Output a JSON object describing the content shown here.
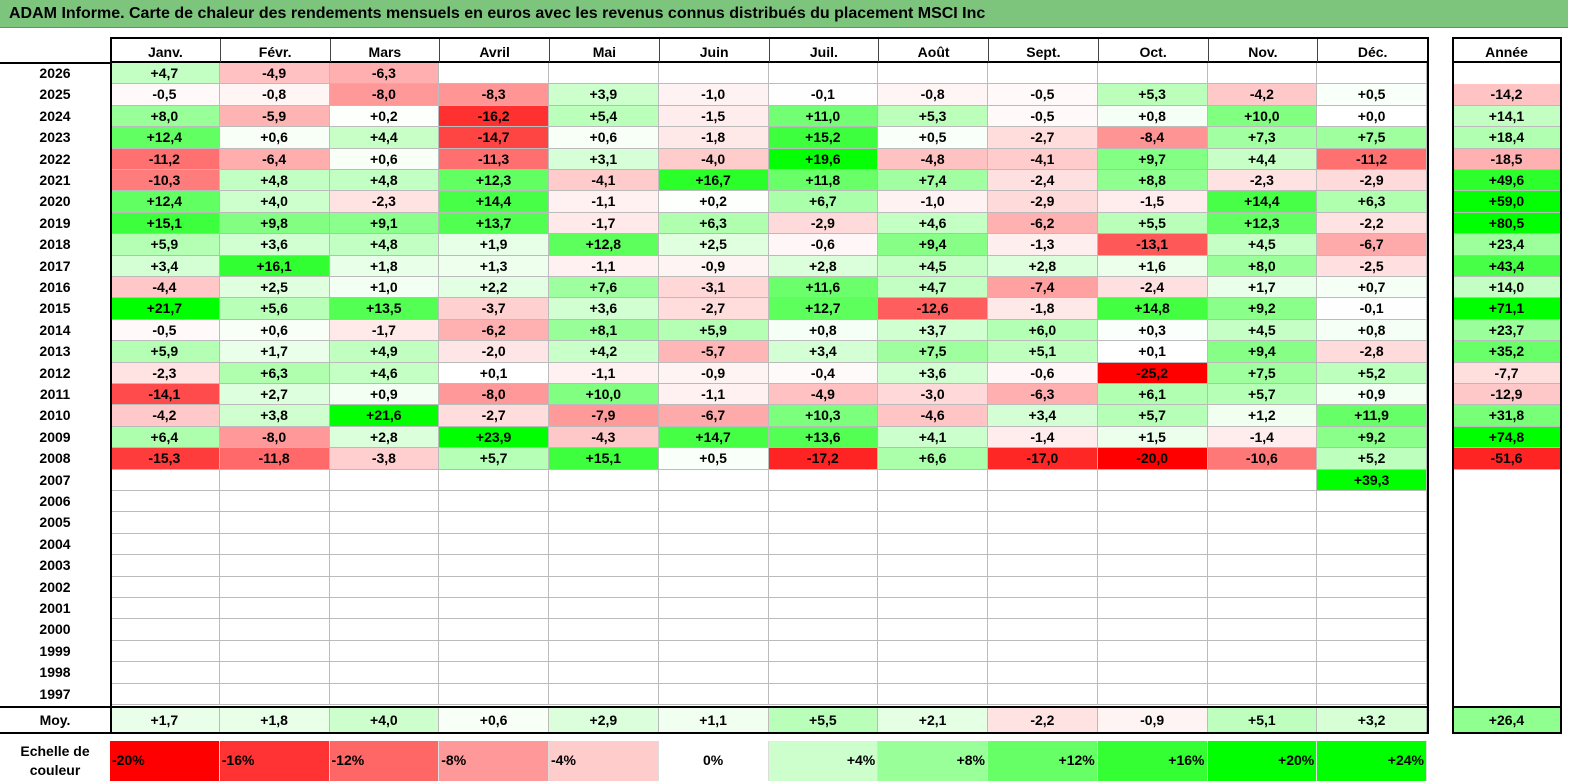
{
  "title": "ADAM Informe. Carte de chaleur des rendements mensuels en euros avec les revenus connus distribués du placement MSCI Inc",
  "chart_data": {
    "type": "heatmap",
    "title": "ADAM Informe. Carte de chaleur des rendements mensuels en euros avec les revenus connus distribués du placement MSCI Inc",
    "columns": [
      "Janv.",
      "Févr.",
      "Mars",
      "Avril",
      "Mai",
      "Juin",
      "Juil.",
      "Août",
      "Sept.",
      "Oct.",
      "Nov.",
      "Déc."
    ],
    "year_header": "Année",
    "rows": [
      {
        "label": "2026",
        "values": [
          "+4,7",
          "-4,9",
          "-6,3",
          null,
          null,
          null,
          null,
          null,
          null,
          null,
          null,
          null
        ],
        "year": null
      },
      {
        "label": "2025",
        "values": [
          "-0,5",
          "-0,8",
          "-8,0",
          "-8,3",
          "+3,9",
          "-1,0",
          "-0,1",
          "-0,8",
          "-0,5",
          "+5,3",
          "-4,2",
          "+0,5"
        ],
        "year": "-14,2"
      },
      {
        "label": "2024",
        "values": [
          "+8,0",
          "-5,9",
          "+0,2",
          "-16,2",
          "+5,4",
          "-1,5",
          "+11,0",
          "+5,3",
          "-0,5",
          "+0,8",
          "+10,0",
          "+0,0"
        ],
        "year": "+14,1"
      },
      {
        "label": "2023",
        "values": [
          "+12,4",
          "+0,6",
          "+4,4",
          "-14,7",
          "+0,6",
          "-1,8",
          "+15,2",
          "+0,5",
          "-2,7",
          "-8,4",
          "+7,3",
          "+7,5"
        ],
        "year": "+18,4"
      },
      {
        "label": "2022",
        "values": [
          "-11,2",
          "-6,4",
          "+0,6",
          "-11,3",
          "+3,1",
          "-4,0",
          "+19,6",
          "-4,8",
          "-4,1",
          "+9,7",
          "+4,4",
          "-11,2"
        ],
        "year": "-18,5"
      },
      {
        "label": "2021",
        "values": [
          "-10,3",
          "+4,8",
          "+4,8",
          "+12,3",
          "-4,1",
          "+16,7",
          "+11,8",
          "+7,4",
          "-2,4",
          "+8,8",
          "-2,3",
          "-2,9"
        ],
        "year": "+49,6"
      },
      {
        "label": "2020",
        "values": [
          "+12,4",
          "+4,0",
          "-2,3",
          "+14,4",
          "-1,1",
          "+0,2",
          "+6,7",
          "-1,0",
          "-2,9",
          "-1,5",
          "+14,4",
          "+6,3"
        ],
        "year": "+59,0"
      },
      {
        "label": "2019",
        "values": [
          "+15,1",
          "+9,8",
          "+9,1",
          "+13,7",
          "-1,7",
          "+6,3",
          "-2,9",
          "+4,6",
          "-6,2",
          "+5,5",
          "+12,3",
          "-2,2"
        ],
        "year": "+80,5"
      },
      {
        "label": "2018",
        "values": [
          "+5,9",
          "+3,6",
          "+4,8",
          "+1,9",
          "+12,8",
          "+2,5",
          "-0,6",
          "+9,4",
          "-1,3",
          "-13,1",
          "+4,5",
          "-6,7"
        ],
        "year": "+23,4"
      },
      {
        "label": "2017",
        "values": [
          "+3,4",
          "+16,1",
          "+1,8",
          "+1,3",
          "-1,1",
          "-0,9",
          "+2,8",
          "+4,5",
          "+2,8",
          "+1,6",
          "+8,0",
          "-2,5"
        ],
        "year": "+43,4"
      },
      {
        "label": "2016",
        "values": [
          "-4,4",
          "+2,5",
          "+1,0",
          "+2,2",
          "+7,6",
          "-3,1",
          "+11,6",
          "+4,7",
          "-7,4",
          "-2,4",
          "+1,7",
          "+0,7"
        ],
        "year": "+14,0"
      },
      {
        "label": "2015",
        "values": [
          "+21,7",
          "+5,6",
          "+13,5",
          "-3,7",
          "+3,6",
          "-2,7",
          "+12,7",
          "-12,6",
          "-1,8",
          "+14,8",
          "+9,2",
          "-0,1"
        ],
        "year": "+71,1"
      },
      {
        "label": "2014",
        "values": [
          "-0,5",
          "+0,6",
          "-1,7",
          "-6,2",
          "+8,1",
          "+5,9",
          "+0,8",
          "+3,7",
          "+6,0",
          "+0,3",
          "+4,5",
          "+0,8"
        ],
        "year": "+23,7"
      },
      {
        "label": "2013",
        "values": [
          "+5,9",
          "+1,7",
          "+4,9",
          "-2,0",
          "+4,2",
          "-5,7",
          "+3,4",
          "+7,5",
          "+5,1",
          "+0,1",
          "+9,4",
          "-2,8"
        ],
        "year": "+35,2"
      },
      {
        "label": "2012",
        "values": [
          "-2,3",
          "+6,3",
          "+4,6",
          "+0,1",
          "-1,1",
          "-0,9",
          "-0,4",
          "+3,6",
          "-0,6",
          "-25,2",
          "+7,5",
          "+5,2"
        ],
        "year": "-7,7"
      },
      {
        "label": "2011",
        "values": [
          "-14,1",
          "+2,7",
          "+0,9",
          "-8,0",
          "+10,0",
          "-1,1",
          "-4,9",
          "-3,0",
          "-6,3",
          "+6,1",
          "+5,7",
          "+0,9"
        ],
        "year": "-12,9"
      },
      {
        "label": "2010",
        "values": [
          "-4,2",
          "+3,8",
          "+21,6",
          "-2,7",
          "-7,9",
          "-6,7",
          "+10,3",
          "-4,6",
          "+3,4",
          "+5,7",
          "+1,2",
          "+11,9"
        ],
        "year": "+31,8"
      },
      {
        "label": "2009",
        "values": [
          "+6,4",
          "-8,0",
          "+2,8",
          "+23,9",
          "-4,3",
          "+14,7",
          "+13,6",
          "+4,1",
          "-1,4",
          "+1,5",
          "-1,4",
          "+9,2"
        ],
        "year": "+74,8"
      },
      {
        "label": "2008",
        "values": [
          "-15,3",
          "-11,8",
          "-3,8",
          "+5,7",
          "+15,1",
          "+0,5",
          "-17,2",
          "+6,6",
          "-17,0",
          "-20,0",
          "-10,6",
          "+5,2"
        ],
        "year": "-51,6"
      },
      {
        "label": "2007",
        "values": [
          null,
          null,
          null,
          null,
          null,
          null,
          null,
          null,
          null,
          null,
          null,
          "+39,3"
        ],
        "year": null
      },
      {
        "label": "2006",
        "values": [
          null,
          null,
          null,
          null,
          null,
          null,
          null,
          null,
          null,
          null,
          null,
          null
        ],
        "year": null
      },
      {
        "label": "2005",
        "values": [
          null,
          null,
          null,
          null,
          null,
          null,
          null,
          null,
          null,
          null,
          null,
          null
        ],
        "year": null
      },
      {
        "label": "2004",
        "values": [
          null,
          null,
          null,
          null,
          null,
          null,
          null,
          null,
          null,
          null,
          null,
          null
        ],
        "year": null
      },
      {
        "label": "2003",
        "values": [
          null,
          null,
          null,
          null,
          null,
          null,
          null,
          null,
          null,
          null,
          null,
          null
        ],
        "year": null
      },
      {
        "label": "2002",
        "values": [
          null,
          null,
          null,
          null,
          null,
          null,
          null,
          null,
          null,
          null,
          null,
          null
        ],
        "year": null
      },
      {
        "label": "2001",
        "values": [
          null,
          null,
          null,
          null,
          null,
          null,
          null,
          null,
          null,
          null,
          null,
          null
        ],
        "year": null
      },
      {
        "label": "2000",
        "values": [
          null,
          null,
          null,
          null,
          null,
          null,
          null,
          null,
          null,
          null,
          null,
          null
        ],
        "year": null
      },
      {
        "label": "1999",
        "values": [
          null,
          null,
          null,
          null,
          null,
          null,
          null,
          null,
          null,
          null,
          null,
          null
        ],
        "year": null
      },
      {
        "label": "1998",
        "values": [
          null,
          null,
          null,
          null,
          null,
          null,
          null,
          null,
          null,
          null,
          null,
          null
        ],
        "year": null
      },
      {
        "label": "1997",
        "values": [
          null,
          null,
          null,
          null,
          null,
          null,
          null,
          null,
          null,
          null,
          null,
          null
        ],
        "year": null
      }
    ],
    "average": {
      "label": "Moy.",
      "values": [
        "+1,7",
        "+1,8",
        "+4,0",
        "+0,6",
        "+2,9",
        "+1,1",
        "+5,5",
        "+2,1",
        "-2,2",
        "-0,9",
        "+5,1",
        "+3,2"
      ],
      "year": "+26,4"
    },
    "color_scale": {
      "label": "Echelle de couleur",
      "stops": [
        {
          "label": "-20%",
          "value": -20,
          "color": "#ff0000"
        },
        {
          "label": "-16%",
          "value": -16,
          "color": "#ff3333"
        },
        {
          "label": "-12%",
          "value": -12,
          "color": "#ff6666"
        },
        {
          "label": "-8%",
          "value": -8,
          "color": "#ff9999"
        },
        {
          "label": "-4%",
          "value": -4,
          "color": "#ffcccc"
        },
        {
          "label": "0%",
          "value": 0,
          "color": "#ffffff"
        },
        {
          "label": "+4%",
          "value": 4,
          "color": "#ccffcc"
        },
        {
          "label": "+8%",
          "value": 8,
          "color": "#99ff99"
        },
        {
          "label": "+12%",
          "value": 12,
          "color": "#66ff66"
        },
        {
          "label": "+16%",
          "value": 16,
          "color": "#33ff33"
        },
        {
          "label": "+20%",
          "value": 20,
          "color": "#00ff00"
        },
        {
          "label": "+24%",
          "value": 24,
          "color": "#00ff00"
        }
      ]
    }
  }
}
